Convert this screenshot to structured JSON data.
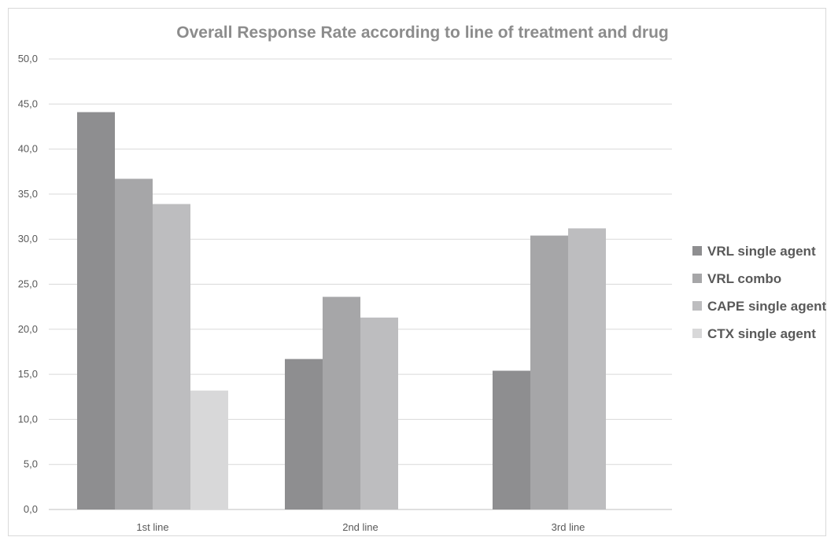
{
  "chart_data": {
    "type": "bar",
    "title": "Overall Response Rate according to line of treatment and drug",
    "xlabel": "",
    "ylabel": "",
    "categories": [
      "1st line",
      "2nd line",
      "3rd line"
    ],
    "series": [
      {
        "name": "VRL single agent",
        "color": "#8e8e90",
        "values": [
          44.1,
          16.7,
          15.4
        ]
      },
      {
        "name": "VRL combo",
        "color": "#a6a6a8",
        "values": [
          36.7,
          23.6,
          30.4
        ]
      },
      {
        "name": "CAPE single agent",
        "color": "#bdbdbf",
        "values": [
          33.9,
          21.3,
          31.2
        ]
      },
      {
        "name": "CTX single agent",
        "color": "#d8d8d9",
        "values": [
          13.2,
          null,
          null
        ]
      }
    ],
    "ylim": [
      0,
      50
    ],
    "yticks": [
      "0,0",
      "5,0",
      "10,0",
      "15,0",
      "20,0",
      "25,0",
      "30,0",
      "35,0",
      "40,0",
      "45,0",
      "50,0"
    ],
    "grid": true,
    "legend_position": "right"
  }
}
